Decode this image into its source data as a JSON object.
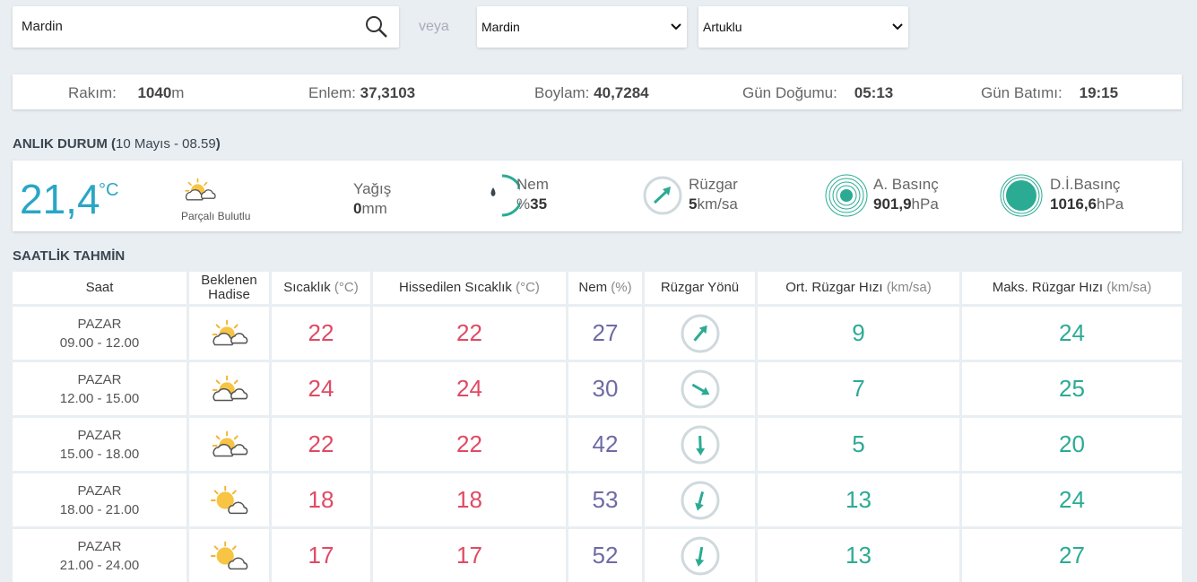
{
  "search": {
    "query": "Mardin",
    "or": "veya",
    "province": "Mardin",
    "district": "Artuklu"
  },
  "info": [
    {
      "label": "Rakım:",
      "value": "1040",
      "unit": "m"
    },
    {
      "label": "Enlem:",
      "value": "37,3103"
    },
    {
      "label": "Boylam:",
      "value": "40,7284"
    },
    {
      "label": "Gün Doğumu:",
      "value": "05:13"
    },
    {
      "label": "Gün Batımı:",
      "value": "19:15"
    }
  ],
  "current": {
    "heading": "ANLIK DURUM (",
    "time": "10 Mayıs - 08.59",
    "heading_close": ")",
    "temperature": "21,4",
    "temperature_unit": "°C",
    "condition": "Parçalı Bulutlu",
    "precipitation": {
      "label": "Yağış",
      "value": "0",
      "unit": "mm"
    },
    "humidity": {
      "label": "Nem",
      "prefix": "%",
      "value": "35"
    },
    "wind": {
      "label": "Rüzgar",
      "value": "5",
      "unit": "km/sa"
    },
    "pressure": {
      "label": "A. Basınç",
      "value": "901,9",
      "unit": "hPa"
    },
    "sea_pressure": {
      "label": "D.İ.Basınç",
      "value": "1016,6",
      "unit": "hPa"
    }
  },
  "hourly": {
    "title": "SAATLİK TAHMİN",
    "columns": [
      {
        "name": "Saat"
      },
      {
        "name": "Beklenen Hadise"
      },
      {
        "name": "Sıcaklık",
        "unit": "(°C)"
      },
      {
        "name": "Hissedilen Sıcaklık",
        "unit": "(°C)"
      },
      {
        "name": "Nem",
        "unit": "(%)"
      },
      {
        "name": "Rüzgar Yönü"
      },
      {
        "name": "Ort. Rüzgar Hızı",
        "unit": "(km/sa)"
      },
      {
        "name": "Maks. Rüzgar Hızı",
        "unit": "(km/sa)"
      }
    ],
    "rows": [
      {
        "day": "PAZAR",
        "time": "09.00 - 12.00",
        "temp": 22,
        "feels": 22,
        "humidity": 27,
        "wind_avg": 9,
        "wind_max": 24
      },
      {
        "day": "PAZAR",
        "time": "12.00 - 15.00",
        "temp": 24,
        "feels": 24,
        "humidity": 30,
        "wind_avg": 7,
        "wind_max": 25
      },
      {
        "day": "PAZAR",
        "time": "15.00 - 18.00",
        "temp": 22,
        "feels": 22,
        "humidity": 42,
        "wind_avg": 5,
        "wind_max": 20
      },
      {
        "day": "PAZAR",
        "time": "18.00 - 21.00",
        "temp": 18,
        "feels": 18,
        "humidity": 53,
        "wind_avg": 13,
        "wind_max": 24
      },
      {
        "day": "PAZAR",
        "time": "21.00 - 24.00",
        "temp": 17,
        "feels": 17,
        "humidity": 52,
        "wind_avg": 13,
        "wind_max": 27
      }
    ]
  }
}
